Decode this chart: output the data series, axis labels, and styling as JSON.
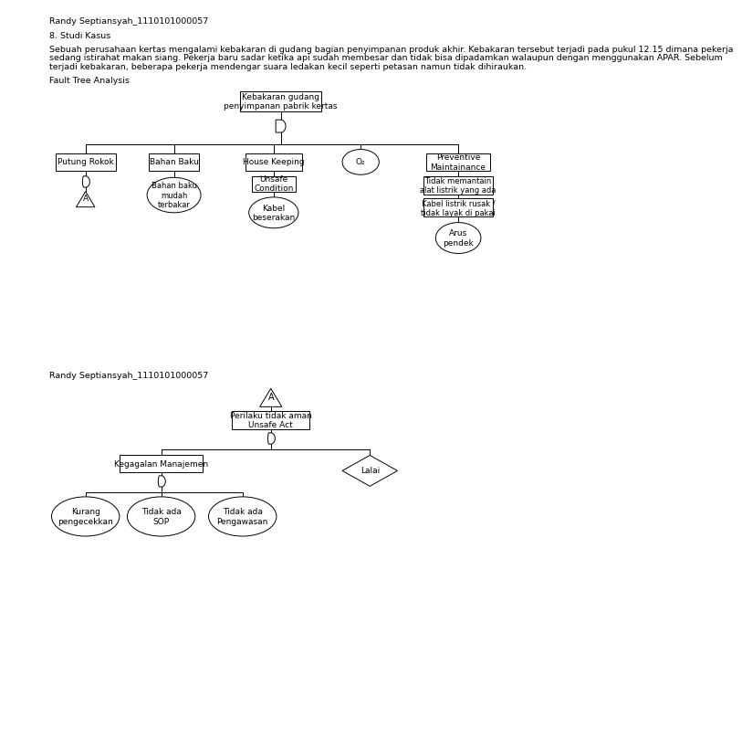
{
  "title_author": "Randy Septiansyah_1110101000057",
  "section_title": "8. Studi Kasus",
  "paragraph1": "Sebuah perusahaan kertas mengalami kebakaran di gudang bagian penyimpanan produk akhir. Kebakaran tersebut terjadi pada pukul 12.15 dimana pekerja",
  "paragraph2": "sedang istirahat makan siang. Pekerja baru sadar ketika api sudah membesar dan tidak bisa dipadamkan walaupun dengan menggunakan APAR. Sebelum",
  "paragraph3": "terjadi kebakaran, beberapa pekerja mendengar suara ledakan kecil seperti petasan namun tidak dihiraukan.",
  "fta_label": "Fault Tree Analysis",
  "author2": "Randy Septiansyah_1110101000057",
  "bg_color": "#ffffff",
  "line_color": "#000000"
}
